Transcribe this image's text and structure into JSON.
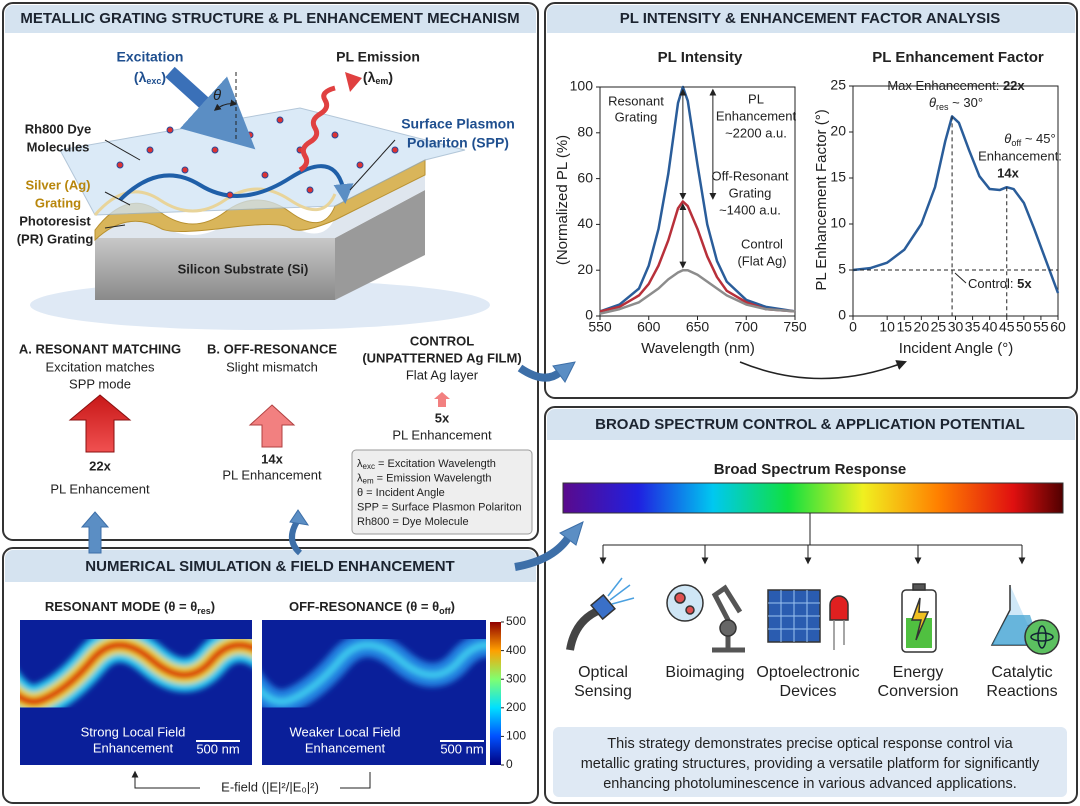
{
  "structure": {
    "title": "METALLIC GRATING STRUCTURE & PL ENHANCEMENT MECHANISM",
    "excitation": "Excitation",
    "excitation_symbol": {
      "open": "(λ",
      "sub": "exc",
      "close": ")"
    },
    "theta": "θ",
    "emission": "PL Emission",
    "emission_symbol": {
      "open": "(λ",
      "sub": "em",
      "close": ")"
    },
    "spp": [
      "Surface Plasmon",
      "Polariton (SPP)"
    ],
    "dye": [
      "Rh800 Dye",
      "Molecules"
    ],
    "silver": [
      "Silver (Ag)",
      "Grating"
    ],
    "photoresist": [
      "Photoresist",
      "(PR) Grating"
    ],
    "substrate": "Silicon Substrate (Si)",
    "cases": [
      {
        "title": [
          "A. RESONANT MATCHING"
        ],
        "desc": [
          "Excitation matches",
          "SPP mode"
        ],
        "factor": "22x",
        "caption": "PL Enhancement"
      },
      {
        "title": [
          "B. OFF-RESONANCE"
        ],
        "desc": [
          "Slight mismatch"
        ],
        "factor": "14x",
        "caption": "PL Enhancement"
      },
      {
        "title": [
          "CONTROL",
          "(UNPATTERNED Ag FILM)"
        ],
        "desc": [
          "Flat Ag layer"
        ],
        "factor": "5x",
        "caption": "PL Enhancement"
      }
    ],
    "legend": [
      {
        "sym": "λ",
        "sub": "exc",
        "text": " = Excitation Wavelength"
      },
      {
        "sym": "λ",
        "sub": "em",
        "text": " = Emission Wavelength"
      },
      {
        "sym": "θ",
        "sub": "",
        "text": " = Incident Angle"
      },
      {
        "sym": "SPP",
        "sub": "",
        "text": " = Surface Plasmon Polariton"
      },
      {
        "sym": "Rh800",
        "sub": "",
        "text": " = Dye Molecule"
      }
    ]
  },
  "simulation": {
    "title": "NUMERICAL SIMULATION & FIELD ENHANCEMENT",
    "maps": [
      {
        "title": "RESONANT MODE (θ = θ",
        "sub": "res",
        "close": ")",
        "caption": [
          "Strong Local Field",
          "Enhancement"
        ],
        "scale": "500 nm"
      },
      {
        "title": "OFF-RESONANCE (θ = θ",
        "sub": "off",
        "close": ")",
        "caption": [
          "Weaker Local Field",
          "Enhancement"
        ],
        "scale": "500 nm"
      }
    ],
    "efield": "E-field (|E|²/|E₀|²)",
    "colorbar": {
      "lim": [
        0,
        500
      ],
      "ticks": [
        0,
        100,
        200,
        300,
        400,
        500
      ]
    }
  },
  "analysis": {
    "title": "PL INTENSITY & ENHANCEMENT FACTOR ANALYSIS"
  },
  "chart_data": [
    {
      "type": "line",
      "title": "PL Intensity",
      "xlabel": "Wavelength (nm)",
      "ylabel": "(Normalized PL (%)",
      "x": [
        550,
        570,
        590,
        600,
        610,
        620,
        630,
        635,
        640,
        650,
        660,
        670,
        680,
        700,
        720,
        750
      ],
      "series": [
        {
          "color": "#2a5d9a",
          "values": [
            2,
            5,
            12,
            22,
            38,
            62,
            93,
            100,
            94,
            66,
            40,
            24,
            15,
            7,
            4,
            2
          ]
        },
        {
          "color": "#b8303a",
          "values": [
            2,
            4,
            9,
            14,
            22,
            33,
            47,
            50,
            48,
            38,
            26,
            17,
            11,
            6,
            3,
            2
          ]
        },
        {
          "color": "#8c8c8c",
          "values": [
            1,
            3,
            6,
            9,
            12,
            16,
            19,
            20,
            20,
            18,
            15,
            12,
            9,
            5,
            3,
            2
          ]
        }
      ],
      "xlim": [
        550,
        750
      ],
      "xticks": [
        550,
        600,
        650,
        700,
        750
      ],
      "ylim": [
        0,
        100
      ],
      "yticks": [
        0,
        20,
        40,
        60,
        80,
        100
      ],
      "annotations": {
        "resonant": [
          "Resonant",
          "Grating"
        ],
        "enhancement": [
          "PL",
          "Enhancement",
          "~2200 a.u."
        ],
        "offres": [
          "Off-Resonant",
          "Grating",
          "~1400 a.u."
        ],
        "control": [
          "Control",
          "(Flat Ag)"
        ]
      }
    },
    {
      "type": "line",
      "title": "PL Enhancement Factor",
      "xlabel": "Incident Angle (°)",
      "ylabel": "PL Enhancement Factor (°)",
      "x": [
        0,
        5,
        10,
        15,
        20,
        24,
        27,
        29,
        31,
        34,
        37,
        40,
        43,
        45,
        47,
        50,
        53,
        56,
        60
      ],
      "values": [
        5,
        5.2,
        5.8,
        7.2,
        10,
        14,
        19,
        21.7,
        21,
        18,
        15.2,
        13.8,
        13.7,
        14,
        13.8,
        12.3,
        9.5,
        6.5,
        2.5
      ],
      "color": "#2a5d9a",
      "xlim": [
        0,
        60
      ],
      "xticks": [
        0,
        10,
        15,
        20,
        25,
        30,
        35,
        40,
        45,
        50,
        55,
        60
      ],
      "ylim": [
        0,
        25
      ],
      "yticks": [
        0,
        5,
        10,
        15,
        20,
        25
      ],
      "vlines": [
        29,
        45
      ],
      "hline": 5,
      "annotations": {
        "max": {
          "text": "Max Enhancement: ",
          "bold": "22x"
        },
        "res": {
          "open": "θ",
          "sub": "res",
          "text": " ~ 30°"
        },
        "off": {
          "open": "θ",
          "sub": "off",
          "text": " ~ 45°"
        },
        "enh": "Enhancement:",
        "enh_value": "14x",
        "control": {
          "text": "Control: ",
          "bold": "5x"
        }
      }
    }
  ],
  "applications": {
    "title": "BROAD SPECTRUM CONTROL & APPLICATION POTENTIAL",
    "spectrum": "Broad Spectrum Response",
    "items": [
      [
        "Optical",
        "Sensing"
      ],
      [
        "Bioimaging"
      ],
      [
        "Optoelectronic",
        "Devices"
      ],
      [
        "Energy",
        "Conversion"
      ],
      [
        "Catalytic",
        "Reactions"
      ]
    ],
    "summary": [
      "This strategy demonstrates precise optical response control via",
      "metallic grating structures, providing a versatile platform for significantly",
      "enhancing photoluminescence in various advanced applications."
    ]
  }
}
